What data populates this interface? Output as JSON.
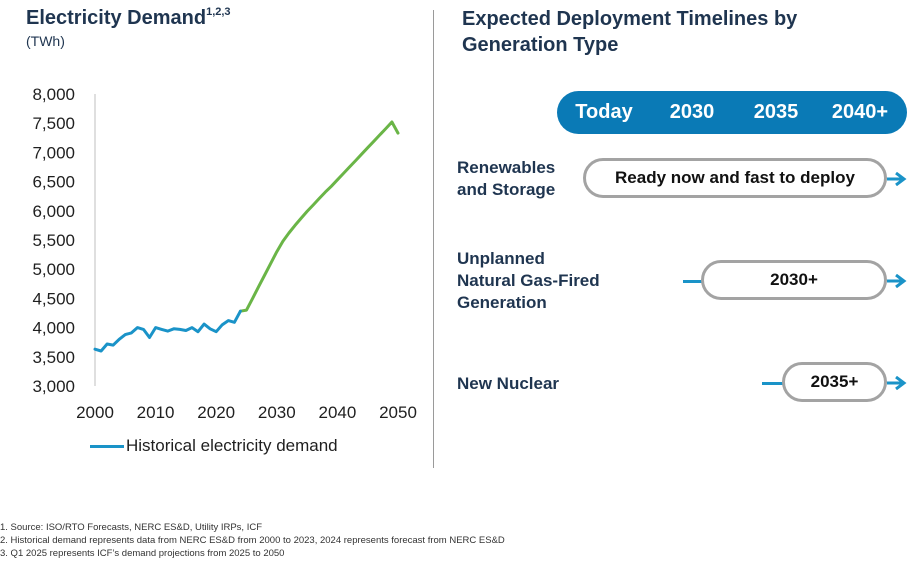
{
  "left": {
    "title": "Electricity Demand",
    "title_sup": "1,2,3",
    "unit": "(TWh)"
  },
  "chart_data": {
    "type": "line",
    "title": "Electricity Demand",
    "ylabel": "(TWh)",
    "xlim": [
      2000,
      2050
    ],
    "ylim": [
      3000,
      8000
    ],
    "x_ticks": [
      "2000",
      "2010",
      "2020",
      "2030",
      "2040",
      "2050"
    ],
    "y_ticks": [
      "3,000",
      "3,500",
      "4,000",
      "4,500",
      "5,000",
      "5,500",
      "6,000",
      "6,500",
      "7,000",
      "7,500",
      "8,000"
    ],
    "series": [
      {
        "name": "Historical electricity demand",
        "color": "#1a93c8",
        "x": [
          2000,
          2001,
          2002,
          2003,
          2004,
          2005,
          2006,
          2007,
          2008,
          2009,
          2010,
          2011,
          2012,
          2013,
          2014,
          2015,
          2016,
          2017,
          2018,
          2019,
          2020,
          2021,
          2022,
          2023,
          2024
        ],
        "y": [
          3630,
          3600,
          3720,
          3700,
          3800,
          3880,
          3910,
          4000,
          3970,
          3830,
          4000,
          3970,
          3940,
          3980,
          3970,
          3950,
          4000,
          3930,
          4060,
          3980,
          3930,
          4050,
          4120,
          4090,
          4280
        ]
      },
      {
        "name": "",
        "color": "#6ab547",
        "x": [
          2024,
          2025,
          2026,
          2027,
          2028,
          2029,
          2030,
          2031,
          2032,
          2033,
          2034,
          2035,
          2036,
          2037,
          2038,
          2039,
          2040,
          2041,
          2042,
          2043,
          2044,
          2045,
          2046,
          2047,
          2048,
          2049,
          2050
        ],
        "y": [
          4280,
          4300,
          4500,
          4700,
          4900,
          5100,
          5300,
          5480,
          5620,
          5750,
          5870,
          5990,
          6100,
          6210,
          6320,
          6420,
          6530,
          6640,
          6750,
          6860,
          6970,
          7080,
          7190,
          7300,
          7410,
          7520,
          7330
        ]
      }
    ],
    "legend": "bottom",
    "grid": false
  },
  "right": {
    "title": "Expected Deployment Timelines by Generation Type",
    "timeline": [
      "Today",
      "2030",
      "2035",
      "2040+"
    ],
    "rows": [
      {
        "label": "Renewables\nand Storage",
        "pill": "Ready now and fast to deploy"
      },
      {
        "label": "Unplanned\nNatural Gas-Fired\nGeneration",
        "pill": "2030+"
      },
      {
        "label": "New Nuclear",
        "pill": "2035+"
      }
    ]
  },
  "footnotes": [
    "1.   Source: ISO/RTO Forecasts, NERC ES&D, Utility IRPs, ICF",
    "2.   Historical demand represents data from NERC ES&D from 2000 to 2023, 2024 represents forecast from NERC ES&D",
    "3.   Q1 2025 represents ICF’s demand projections from 2025 to 2050"
  ],
  "colors": {
    "accent": "#0a7ab6",
    "historical": "#1a93c8",
    "projection": "#6ab547",
    "pill_border": "#a3a3a3"
  }
}
